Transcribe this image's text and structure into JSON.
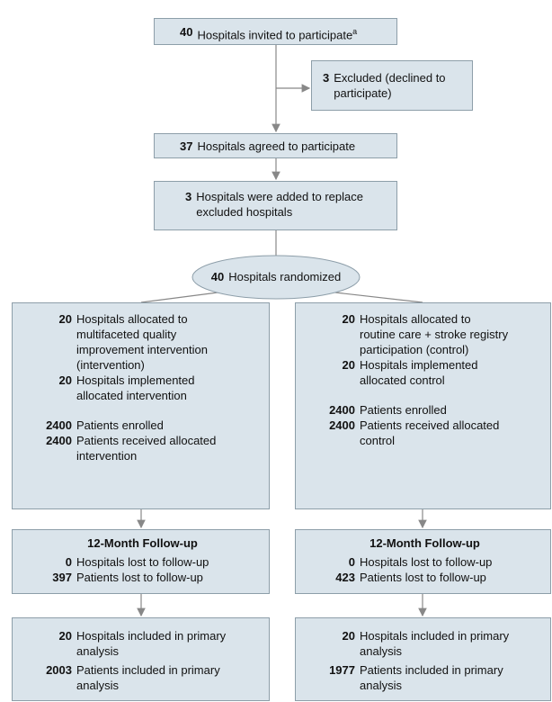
{
  "nodes": {
    "invited": {
      "count": 40,
      "lines": [
        "Hospitals invited to participate"
      ],
      "note": "a"
    },
    "excluded": {
      "count": 3,
      "lines": [
        "Excluded (declined to",
        "participate)"
      ]
    },
    "agreed": {
      "count": 37,
      "lines": [
        "Hospitals agreed to participate"
      ]
    },
    "added": {
      "count": 3,
      "lines": [
        "Hospitals were added to replace",
        "excluded hospitals"
      ]
    },
    "randomized": {
      "count": 40,
      "lines": [
        "Hospitals randomized"
      ]
    }
  },
  "arms": [
    {
      "allocation": [
        {
          "count": 20,
          "lines": [
            "Hospitals allocated to",
            "multifaceted quality",
            "improvement intervention",
            "(intervention)"
          ]
        },
        {
          "count": 20,
          "lines": [
            "Hospitals implemented",
            "allocated intervention"
          ]
        },
        {
          "count": 2400,
          "lines": [
            "Patients enrolled"
          ]
        },
        {
          "count": 2400,
          "lines": [
            "Patients received allocated",
            "intervention"
          ]
        }
      ],
      "follow_up": {
        "title": "12-Month Follow-up",
        "items": [
          {
            "count": 0,
            "lines": [
              "Hospitals lost to follow-up"
            ]
          },
          {
            "count": 397,
            "lines": [
              "Patients lost to follow-up"
            ]
          }
        ]
      },
      "analysis": [
        {
          "count": 20,
          "lines": [
            "Hospitals included in primary",
            "analysis"
          ]
        },
        {
          "count": 2003,
          "lines": [
            "Patients included in primary",
            "analysis"
          ]
        }
      ]
    },
    {
      "allocation": [
        {
          "count": 20,
          "lines": [
            "Hospitals allocated to",
            "routine care + stroke registry",
            "participation (control)"
          ]
        },
        {
          "count": 20,
          "lines": [
            "Hospitals implemented",
            "allocated control"
          ]
        },
        {
          "count": 2400,
          "lines": [
            "Patients enrolled"
          ]
        },
        {
          "count": 2400,
          "lines": [
            "Patients received allocated",
            "control"
          ]
        }
      ],
      "follow_up": {
        "title": "12-Month Follow-up",
        "items": [
          {
            "count": 0,
            "lines": [
              "Hospitals lost to follow-up"
            ]
          },
          {
            "count": 423,
            "lines": [
              "Patients lost to follow-up"
            ]
          }
        ]
      },
      "analysis": [
        {
          "count": 20,
          "lines": [
            "Hospitals included in primary",
            "analysis"
          ]
        },
        {
          "count": 1977,
          "lines": [
            "Patients included in primary",
            "analysis"
          ]
        }
      ]
    }
  ]
}
